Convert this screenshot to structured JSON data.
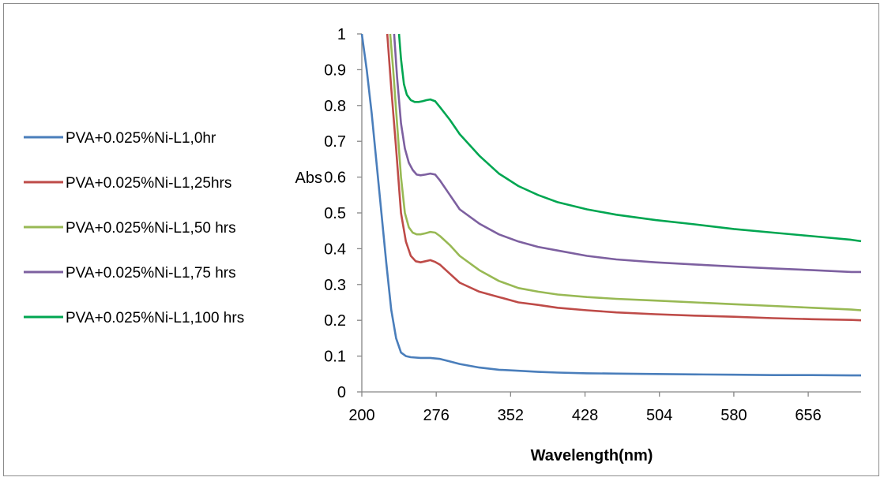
{
  "chart_data": {
    "type": "line",
    "title": "",
    "xlabel": "Wavelength(nm)",
    "ylabel": "Abs",
    "xlim": [
      200,
      710
    ],
    "ylim": [
      0,
      1
    ],
    "x_ticks": [
      "200",
      "276",
      "352",
      "428",
      "504",
      "580",
      "656"
    ],
    "y_ticks": [
      "0",
      "0.1",
      "0.2",
      "0.3",
      "0.4",
      "0.5",
      "0.6",
      "0.7",
      "0.8",
      "0.9",
      "1"
    ],
    "grid": false,
    "legend_position": "left",
    "series": [
      {
        "name": "PVA+0.025%Ni-L1,0hr",
        "color": "#4a7ebb",
        "x": [
          200,
          205,
          210,
          215,
          220,
          225,
          230,
          235,
          240,
          245,
          250,
          260,
          270,
          280,
          290,
          300,
          320,
          340,
          360,
          380,
          400,
          430,
          460,
          500,
          540,
          580,
          620,
          660,
          700,
          710
        ],
        "y": [
          1.0,
          0.9,
          0.78,
          0.64,
          0.5,
          0.36,
          0.23,
          0.15,
          0.11,
          0.1,
          0.097,
          0.095,
          0.095,
          0.092,
          0.085,
          0.078,
          0.068,
          0.062,
          0.059,
          0.056,
          0.054,
          0.052,
          0.051,
          0.05,
          0.049,
          0.048,
          0.047,
          0.047,
          0.046,
          0.046
        ]
      },
      {
        "name": "PVA+0.025%Ni-L1,25hrs",
        "color": "#be4b48",
        "x": [
          226,
          230,
          235,
          240,
          245,
          250,
          255,
          260,
          265,
          270,
          275,
          280,
          290,
          300,
          320,
          340,
          360,
          380,
          400,
          430,
          460,
          500,
          540,
          580,
          620,
          660,
          700,
          710
        ],
        "y": [
          1.0,
          0.85,
          0.68,
          0.5,
          0.42,
          0.38,
          0.365,
          0.362,
          0.365,
          0.368,
          0.363,
          0.355,
          0.33,
          0.305,
          0.28,
          0.265,
          0.25,
          0.243,
          0.235,
          0.228,
          0.222,
          0.217,
          0.213,
          0.21,
          0.206,
          0.203,
          0.201,
          0.2
        ]
      },
      {
        "name": "PVA+0.025%Ni-L1,50 hrs",
        "color": "#98b954",
        "x": [
          229,
          232,
          236,
          240,
          244,
          248,
          252,
          256,
          260,
          265,
          270,
          275,
          280,
          290,
          300,
          320,
          340,
          360,
          380,
          400,
          430,
          460,
          500,
          540,
          580,
          620,
          660,
          700,
          710
        ],
        "y": [
          1.0,
          0.9,
          0.75,
          0.6,
          0.5,
          0.46,
          0.445,
          0.44,
          0.44,
          0.443,
          0.447,
          0.445,
          0.435,
          0.41,
          0.38,
          0.34,
          0.31,
          0.29,
          0.28,
          0.272,
          0.265,
          0.26,
          0.255,
          0.25,
          0.245,
          0.24,
          0.235,
          0.23,
          0.228
        ]
      },
      {
        "name": "PVA+0.025%Ni-L1,75 hrs",
        "color": "#7d60a0",
        "x": [
          233,
          236,
          240,
          244,
          248,
          252,
          256,
          260,
          265,
          270,
          275,
          280,
          290,
          300,
          320,
          340,
          360,
          380,
          400,
          430,
          460,
          500,
          540,
          580,
          620,
          660,
          700,
          710
        ],
        "y": [
          1.0,
          0.88,
          0.75,
          0.68,
          0.64,
          0.62,
          0.607,
          0.605,
          0.607,
          0.61,
          0.607,
          0.59,
          0.55,
          0.51,
          0.47,
          0.44,
          0.42,
          0.405,
          0.395,
          0.38,
          0.37,
          0.362,
          0.356,
          0.35,
          0.345,
          0.34,
          0.335,
          0.335
        ]
      },
      {
        "name": "PVA+0.025%Ni-L1,100 hrs",
        "color": "#00a651",
        "x": [
          238,
          240,
          243,
          246,
          250,
          254,
          258,
          262,
          266,
          270,
          275,
          280,
          290,
          300,
          310,
          320,
          340,
          360,
          380,
          400,
          430,
          460,
          500,
          540,
          580,
          620,
          660,
          700,
          710
        ],
        "y": [
          1.0,
          0.93,
          0.86,
          0.83,
          0.815,
          0.81,
          0.81,
          0.812,
          0.815,
          0.817,
          0.812,
          0.795,
          0.76,
          0.72,
          0.69,
          0.66,
          0.61,
          0.575,
          0.55,
          0.53,
          0.51,
          0.495,
          0.48,
          0.468,
          0.455,
          0.445,
          0.435,
          0.425,
          0.421
        ]
      }
    ]
  }
}
